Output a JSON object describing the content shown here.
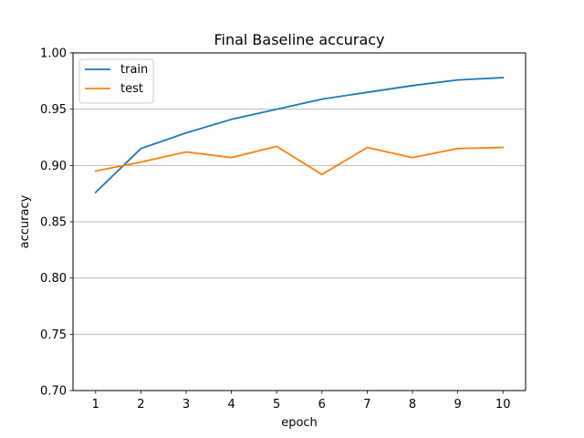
{
  "chart_data": {
    "type": "line",
    "title": "Final Baseline accuracy",
    "xlabel": "epoch",
    "ylabel": "accuracy",
    "x": [
      1,
      2,
      3,
      4,
      5,
      6,
      7,
      8,
      9,
      10
    ],
    "xlim": [
      0.5,
      10.5
    ],
    "ylim": [
      0.7,
      1.0
    ],
    "xticks": [
      "1",
      "2",
      "3",
      "4",
      "5",
      "6",
      "7",
      "8",
      "9",
      "10"
    ],
    "yticks": [
      "0.70",
      "0.75",
      "0.80",
      "0.85",
      "0.90",
      "0.95",
      "1.00"
    ],
    "grid": "horizontal",
    "legend_position": "top-left",
    "series": [
      {
        "name": "train",
        "color": "#1f77b4",
        "values": [
          0.876,
          0.915,
          0.929,
          0.941,
          0.95,
          0.959,
          0.965,
          0.971,
          0.976,
          0.978
        ]
      },
      {
        "name": "test",
        "color": "#ff7f0e",
        "values": [
          0.895,
          0.903,
          0.912,
          0.907,
          0.917,
          0.892,
          0.916,
          0.907,
          0.915,
          0.916
        ]
      }
    ]
  }
}
